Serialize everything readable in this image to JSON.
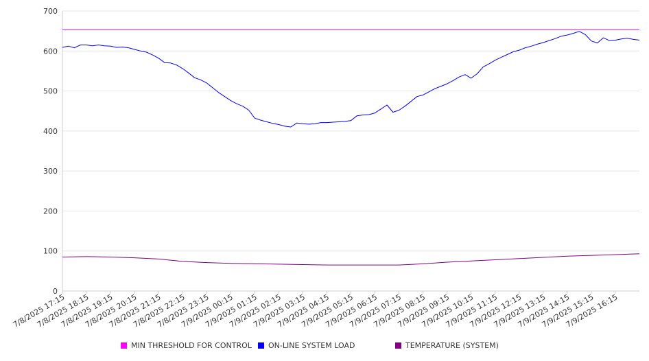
{
  "chart_data": {
    "type": "line",
    "title": "",
    "xlabel": "",
    "ylabel": "",
    "ylim": [
      0,
      700
    ],
    "yticks": [
      0,
      100,
      200,
      300,
      400,
      500,
      600,
      700
    ],
    "grid": "horizontal",
    "legend_position": "bottom",
    "categories": [
      "7/8/2025 17:15",
      "7/8/2025 18:15",
      "7/8/2025 19:15",
      "7/8/2025 20:15",
      "7/8/2025 21:15",
      "7/8/2025 22:15",
      "7/8/2025 23:15",
      "7/9/2025 00:15",
      "7/9/2025 01:15",
      "7/9/2025 02:15",
      "7/9/2025 03:15",
      "7/9/2025 04:15",
      "7/9/2025 05:15",
      "7/9/2025 06:15",
      "7/9/2025 07:15",
      "7/9/2025 08:15",
      "7/9/2025 09:15",
      "7/9/2025 10:15",
      "7/9/2025 11:15",
      "7/9/2025 12:15",
      "7/9/2025 13:15",
      "7/9/2025 14:15",
      "7/9/2025 15:15",
      "7/9/2025 16:15"
    ],
    "series": [
      {
        "name": "MIN THRESHOLD FOR CONTROL",
        "color": "#FF00FF",
        "x": [
          0,
          24
        ],
        "values": [
          653,
          653
        ]
      },
      {
        "name": "ON-LINE SYSTEM LOAD",
        "color": "#0000FF",
        "x": [
          0,
          0.25,
          0.5,
          0.75,
          1.0,
          1.25,
          1.5,
          1.75,
          2.0,
          2.25,
          2.5,
          2.75,
          3.0,
          3.25,
          3.5,
          3.75,
          4.0,
          4.25,
          4.5,
          4.75,
          5.0,
          5.25,
          5.5,
          5.75,
          6.0,
          6.25,
          6.5,
          6.75,
          7.0,
          7.25,
          7.5,
          7.75,
          8.0,
          8.25,
          8.5,
          8.75,
          9.0,
          9.25,
          9.5,
          9.75,
          10.0,
          10.25,
          10.5,
          10.75,
          11.0,
          11.25,
          11.5,
          11.75,
          12.0,
          12.25,
          12.5,
          12.75,
          13.0,
          13.25,
          13.5,
          13.75,
          14.0,
          14.25,
          14.5,
          14.75,
          15.0,
          15.25,
          15.5,
          15.75,
          16.0,
          16.25,
          16.5,
          16.75,
          17.0,
          17.25,
          17.5,
          17.75,
          18.0,
          18.25,
          18.5,
          18.75,
          19.0,
          19.25,
          19.5,
          19.75,
          20.0,
          20.25,
          20.5,
          20.75,
          21.0,
          21.25,
          21.5,
          21.75,
          22.0,
          22.25,
          22.5,
          22.75,
          23.0,
          23.25,
          23.5,
          23.75,
          24.0
        ],
        "values": [
          609,
          612,
          608,
          615,
          615,
          613,
          615,
          613,
          612,
          609,
          610,
          608,
          604,
          600,
          597,
          590,
          582,
          571,
          570,
          565,
          556,
          545,
          533,
          528,
          520,
          508,
          496,
          486,
          476,
          468,
          462,
          452,
          432,
          427,
          423,
          419,
          416,
          412,
          410,
          420,
          418,
          417,
          418,
          421,
          421,
          422,
          423,
          424,
          426,
          438,
          440,
          441,
          445,
          455,
          465,
          447,
          452,
          462,
          474,
          486,
          490,
          498,
          506,
          512,
          518,
          526,
          535,
          541,
          532,
          543,
          560,
          568,
          577,
          584,
          591,
          598,
          602,
          608,
          612,
          617,
          621,
          626,
          631,
          637,
          640,
          644,
          649,
          641,
          625,
          620,
          633,
          626,
          627,
          630,
          632,
          629,
          627
        ]
      },
      {
        "name": "TEMPERATURE (SYSTEM)",
        "color": "#800080",
        "x": [
          0,
          1,
          2,
          3,
          4,
          5,
          6,
          7,
          8,
          9,
          10,
          11,
          12,
          13,
          14,
          15,
          16,
          17,
          18,
          19,
          20,
          21,
          22,
          23,
          24
        ],
        "values": [
          85,
          86,
          85,
          83,
          80,
          74,
          71,
          69,
          68,
          67,
          66,
          65,
          65,
          65,
          65,
          68,
          72,
          75,
          78,
          81,
          84,
          87,
          89,
          91,
          93
        ]
      }
    ]
  }
}
